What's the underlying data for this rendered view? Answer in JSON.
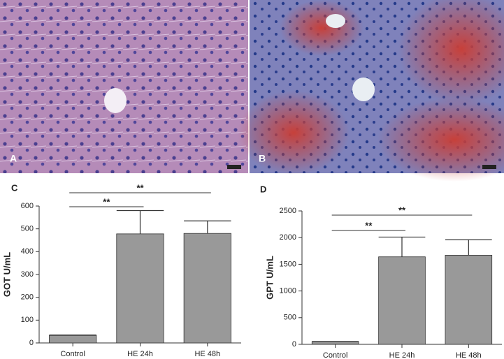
{
  "panels": [
    {
      "label": "A"
    },
    {
      "label": "B"
    }
  ],
  "chart_data": [
    {
      "type": "bar",
      "label": "C",
      "ylabel": "GOT U/mL",
      "categories": [
        "Control",
        "HE 24h",
        "HE 48h"
      ],
      "values": [
        33,
        478,
        480
      ],
      "errors": [
        2,
        102,
        55
      ],
      "color": "#999999",
      "ylim": [
        0,
        600
      ],
      "yticks": [
        0,
        100,
        200,
        300,
        400,
        500,
        600
      ],
      "significance": [
        {
          "text": "**",
          "between": [
            0,
            1
          ]
        },
        {
          "text": "**",
          "between": [
            0,
            2
          ]
        }
      ]
    },
    {
      "type": "bar",
      "label": "D",
      "ylabel": "GPT U/mL",
      "categories": [
        "Control",
        "HE 24h",
        "HE 48h"
      ],
      "values": [
        50,
        1640,
        1670
      ],
      "errors": [
        5,
        370,
        290
      ],
      "color": "#999999",
      "ylim": [
        0,
        2500
      ],
      "yticks": [
        0,
        500,
        1000,
        1500,
        2000,
        2500
      ],
      "significance": [
        {
          "text": "**",
          "between": [
            0,
            1
          ]
        },
        {
          "text": "**",
          "between": [
            0,
            2
          ]
        }
      ]
    }
  ]
}
